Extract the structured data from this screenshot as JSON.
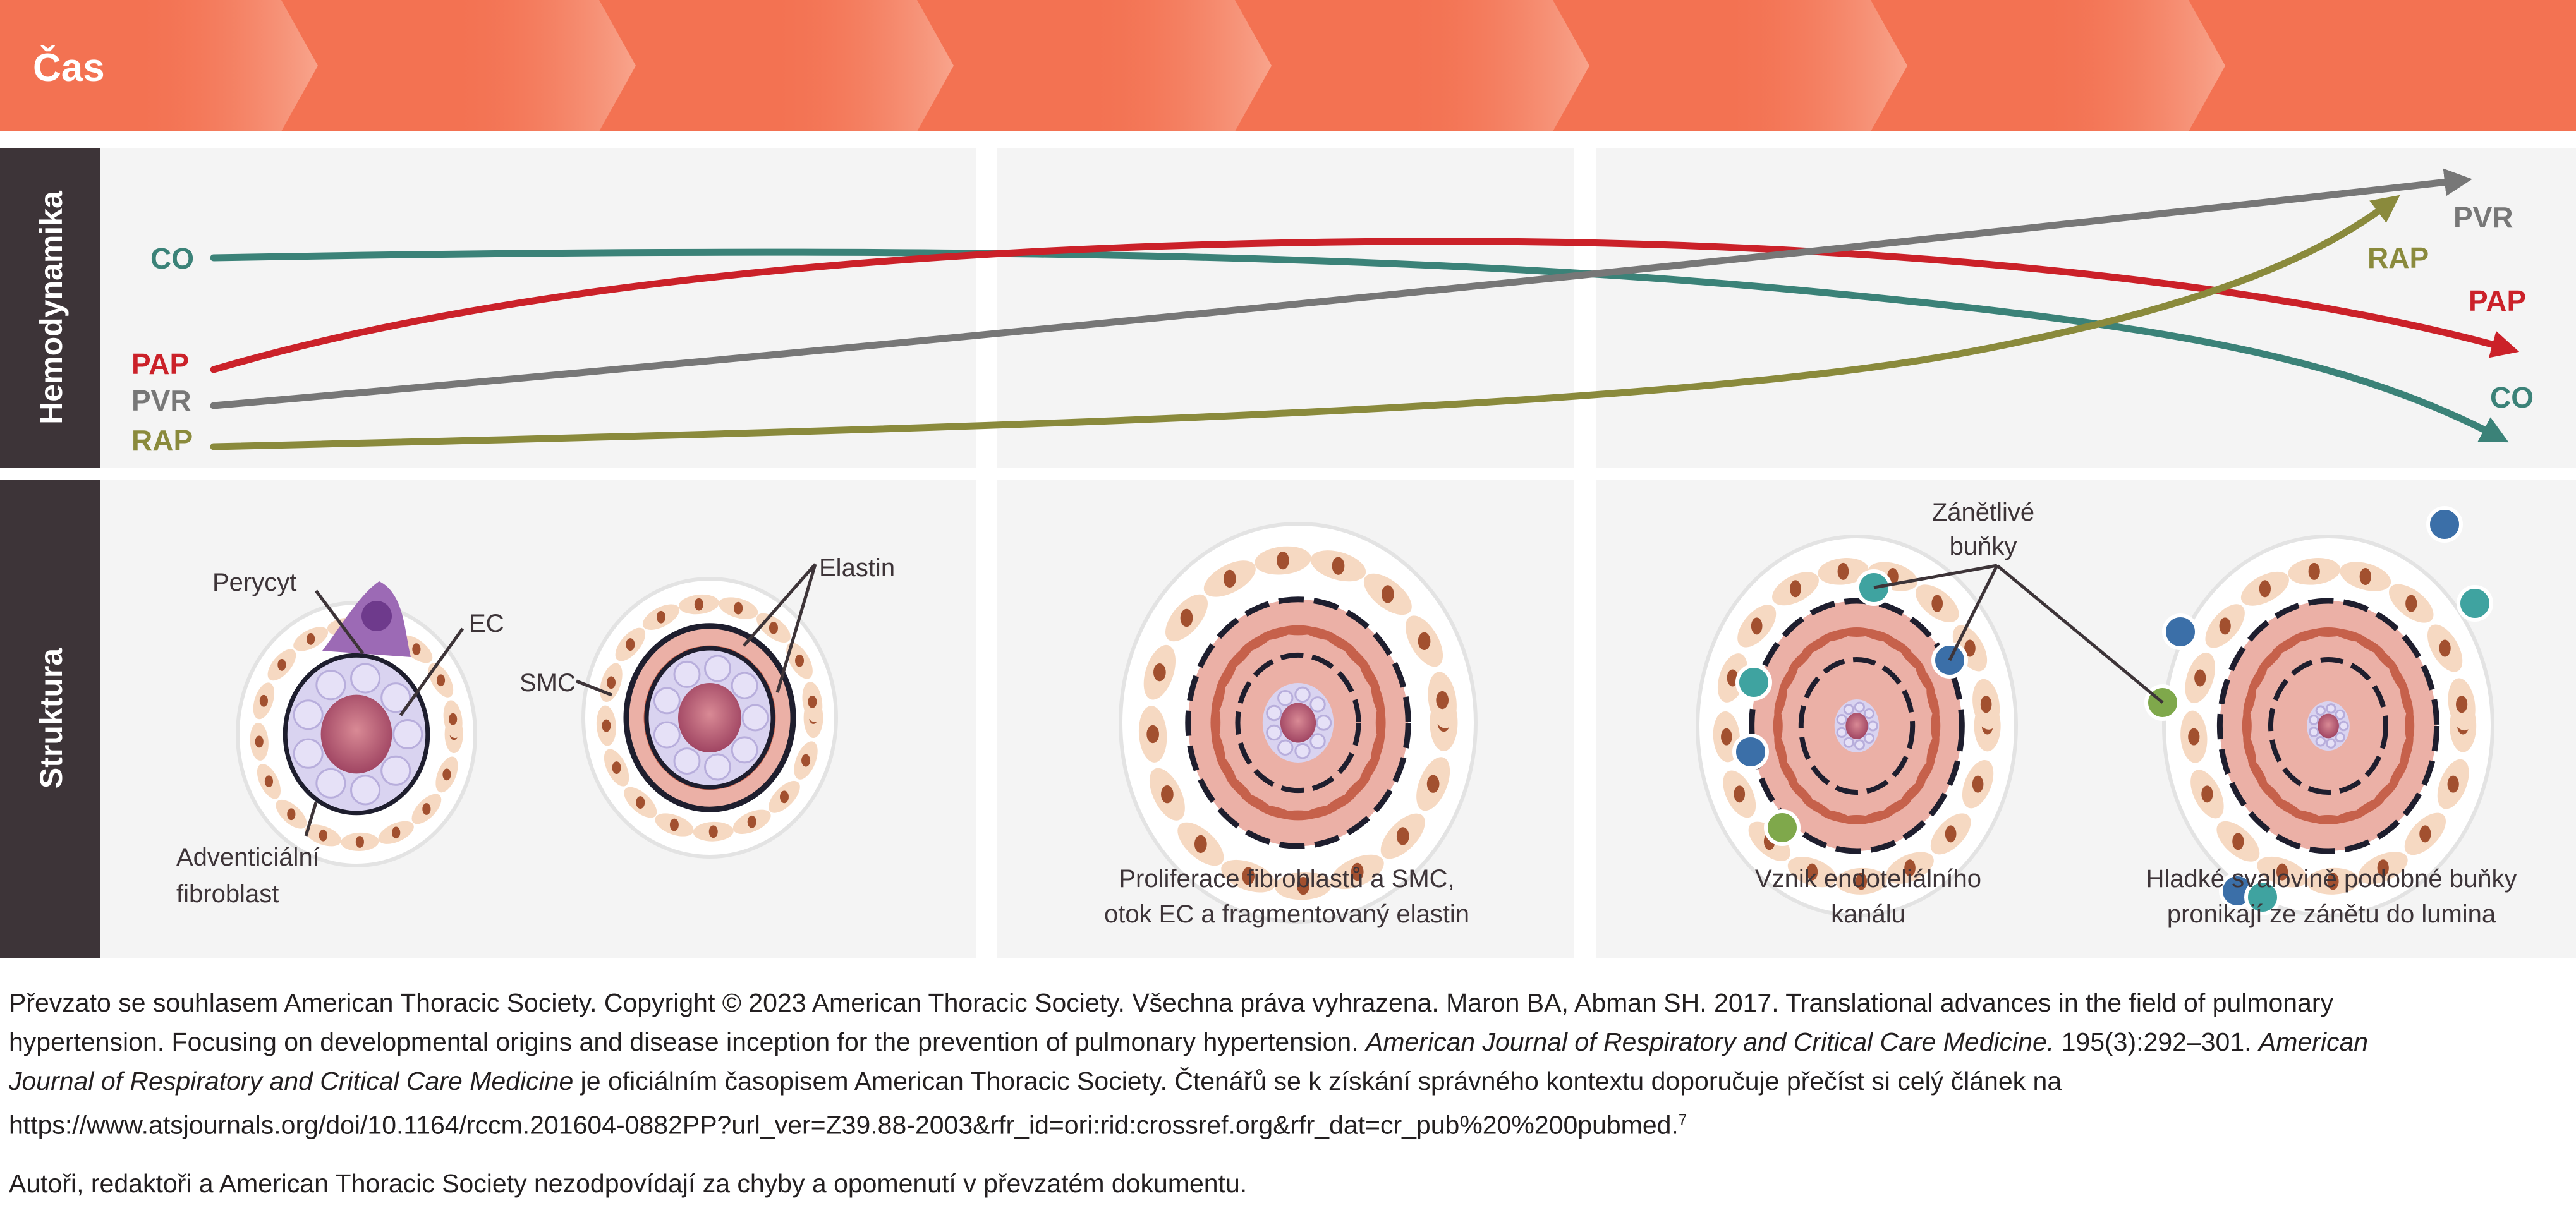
{
  "header": {
    "title": "Čas",
    "color": "#F37252",
    "segments": 8
  },
  "rows": {
    "hemodynamics": "Hemodynamika",
    "structure": "Struktura",
    "label_bg": "#3D3438"
  },
  "hemodynamics": {
    "left_labels": {
      "co": "CO",
      "pap": "PAP",
      "pvr": "PVR",
      "rap": "RAP"
    },
    "right_labels": {
      "pvr": "PVR",
      "rap": "RAP",
      "pap": "PAP",
      "co": "CO"
    },
    "colors": {
      "co": "#3B8278",
      "pap": "#CB2129",
      "pvr": "#777777",
      "rap": "#8A8A3C"
    }
  },
  "structure": {
    "labels": {
      "pericyte": "Perycyt",
      "ec": "EC",
      "adventitial_1": "Adventiciální",
      "adventitial_2": "fibroblast",
      "elastin": "Elastin",
      "smc": "SMC",
      "inflammatory_1": "Zánětlivé",
      "inflammatory_2": "buňky"
    },
    "captions": {
      "stage2_1": "Proliferace fibroblastů a SMC,",
      "stage2_2": "otok EC a fragmentovaný elastin",
      "stage3a_1": "Vznik endoteliálního",
      "stage3a_2": "kanálu",
      "stage3b_1": "Hladké svalovině podobné buňky",
      "stage3b_2": "pronikají ze zánětu do lumina"
    }
  },
  "caption": {
    "l1": "Převzato se souhlasem American Thoracic Society. Copyright © 2023 American Thoracic Society. Všechna práva vyhrazena. Maron BA, Abman SH. 2017. Translational advances in the field of pulmonary",
    "l2a": "hypertension. Focusing on developmental origins and disease inception for the prevention of pulmonary hypertension. ",
    "l2b": "American Journal of Respiratory and Critical Care Medicine.",
    "l2c": " 195(3):292–301. ",
    "l2d": "American",
    "l3a": "Journal of Respiratory and Critical Care Medicine",
    "l3b": " je oficiálním časopisem American Thoracic Society. Čtenářů se k získání správného kontextu doporučuje přečíst si celý článek na",
    "l4": "https://www.atsjournals.org/doi/10.1164/rccm.201604-0882PP?url_ver=Z39.88-2003&rfr_id=ori:rid:crossref.org&rfr_dat=cr_pub%20%200pubmed.",
    "l4sup": "7",
    "disclaimer": "Autoři, redaktoři a American Thoracic Society nezodpovídají za chyby a opomenutí v převzatém dokumentu."
  }
}
